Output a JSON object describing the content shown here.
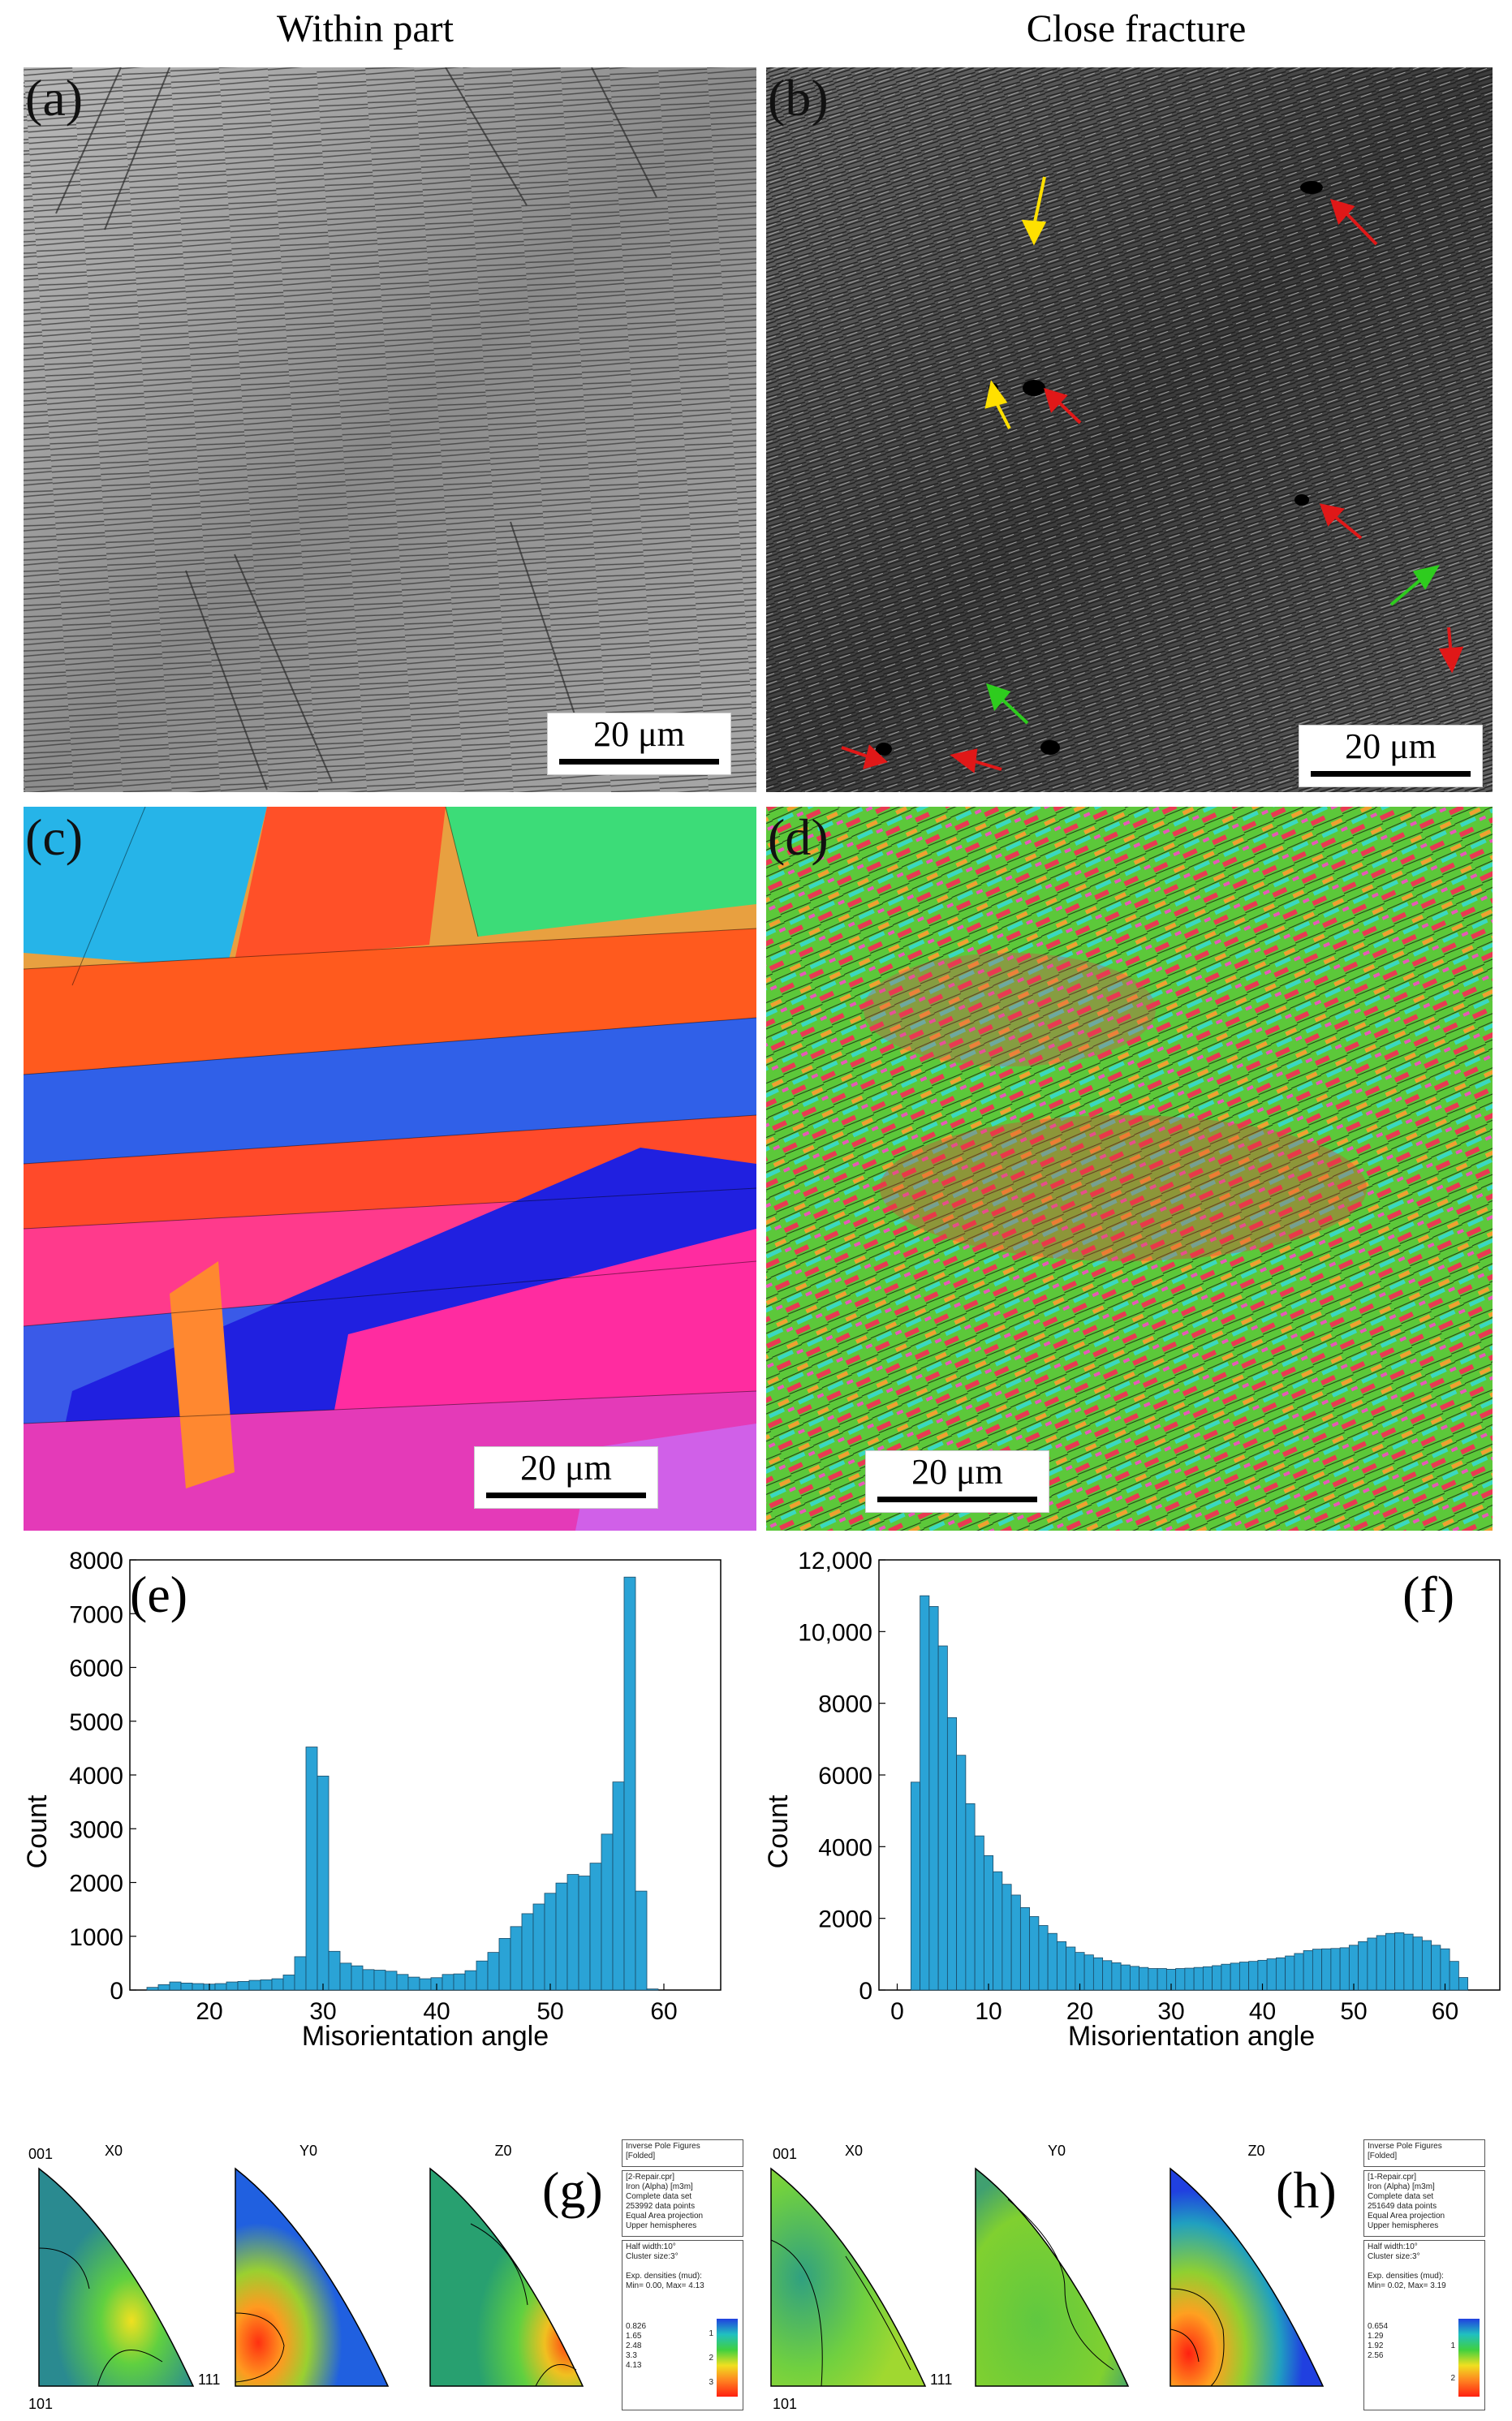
{
  "titles": {
    "left": "Within part",
    "right": "Close fracture"
  },
  "panels": {
    "a": {
      "label": "(a)",
      "scale": "20 μm"
    },
    "b": {
      "label": "(b)",
      "scale": "20 μm"
    },
    "c": {
      "label": "(c)",
      "scale": "20 μm"
    },
    "d": {
      "label": "(d)",
      "scale": "20 μm"
    },
    "e": {
      "label": "(e)"
    },
    "f": {
      "label": "(f)"
    },
    "g": {
      "label": "(g)"
    },
    "h": {
      "label": "(h)"
    }
  },
  "chart_data": [
    {
      "type": "bar",
      "panel": "e",
      "xlabel": "Misorientation angle",
      "ylabel": "Count",
      "xlim": [
        13,
        65
      ],
      "ylim": [
        0,
        8000
      ],
      "xticks": [
        20,
        30,
        40,
        50,
        60
      ],
      "yticks": [
        0,
        1000,
        2000,
        3000,
        4000,
        5000,
        6000,
        7000,
        8000
      ],
      "ytick_labels": [
        "0",
        "1000",
        "2000",
        "3000",
        "4000",
        "5000",
        "6000",
        "7000",
        "8000"
      ],
      "bin_width": 1,
      "x": [
        15,
        16,
        17,
        18,
        19,
        20,
        21,
        22,
        23,
        24,
        25,
        26,
        27,
        28,
        29,
        30,
        31,
        32,
        33,
        34,
        35,
        36,
        37,
        38,
        39,
        40,
        41,
        42,
        43,
        44,
        45,
        46,
        47,
        48,
        49,
        50,
        51,
        52,
        53,
        54,
        55,
        56,
        57,
        58,
        59,
        60,
        61,
        62
      ],
      "values": [
        50,
        100,
        150,
        130,
        120,
        110,
        120,
        150,
        160,
        180,
        190,
        210,
        280,
        620,
        4520,
        3980,
        720,
        500,
        450,
        380,
        370,
        350,
        290,
        240,
        210,
        230,
        290,
        300,
        360,
        540,
        700,
        960,
        1180,
        1420,
        1600,
        1800,
        1990,
        2150,
        2120,
        2360,
        2900,
        3870,
        7680,
        1840,
        20,
        0,
        0,
        0
      ]
    },
    {
      "type": "bar",
      "panel": "f",
      "xlabel": "Misorientation angle",
      "ylabel": "Count",
      "xlim": [
        -2,
        66
      ],
      "ylim": [
        0,
        12000
      ],
      "xticks": [
        0,
        10,
        20,
        30,
        40,
        50,
        60
      ],
      "yticks": [
        0,
        2000,
        4000,
        6000,
        8000,
        10000,
        12000
      ],
      "ytick_labels": [
        "0",
        "2000",
        "4000",
        "6000",
        "8000",
        "10,000",
        "12,000"
      ],
      "bin_width": 1,
      "x": [
        2,
        3,
        4,
        5,
        6,
        7,
        8,
        9,
        10,
        11,
        12,
        13,
        14,
        15,
        16,
        17,
        18,
        19,
        20,
        21,
        22,
        23,
        24,
        25,
        26,
        27,
        28,
        29,
        30,
        31,
        32,
        33,
        34,
        35,
        36,
        37,
        38,
        39,
        40,
        41,
        42,
        43,
        44,
        45,
        46,
        47,
        48,
        49,
        50,
        51,
        52,
        53,
        54,
        55,
        56,
        57,
        58,
        59,
        60,
        61,
        62
      ],
      "values": [
        5800,
        11000,
        10700,
        9600,
        7600,
        6550,
        5200,
        4300,
        3750,
        3300,
        2950,
        2650,
        2300,
        2050,
        1800,
        1580,
        1350,
        1200,
        1050,
        980,
        900,
        820,
        760,
        700,
        660,
        630,
        600,
        600,
        580,
        600,
        610,
        630,
        650,
        680,
        720,
        750,
        780,
        800,
        830,
        870,
        900,
        950,
        1020,
        1100,
        1140,
        1150,
        1160,
        1180,
        1250,
        1350,
        1450,
        1520,
        1580,
        1600,
        1560,
        1480,
        1380,
        1250,
        1150,
        800,
        350
      ]
    }
  ],
  "ipf": {
    "g": {
      "axes": [
        "X0",
        "Y0",
        "Z0"
      ],
      "corners": {
        "top": "001",
        "bottom_left": "101",
        "right": "111"
      },
      "info1": [
        "Inverse Pole Figures",
        "[Folded]"
      ],
      "info2": [
        "[2-Repair.cpr]",
        "Iron (Alpha) [m3m]",
        "Complete data set",
        "253992 data points",
        "Equal Area projection",
        "Upper hemispheres"
      ],
      "info3": [
        "Half width:10°",
        "Cluster size:3°",
        "",
        "Exp. densities (mud):",
        "Min= 0.00, Max= 4.13"
      ],
      "levels": [
        "0.826",
        "1.65",
        "2.48",
        "3.3",
        "4.13"
      ],
      "scale_ticks": [
        "1",
        "2",
        "3"
      ]
    },
    "h": {
      "axes": [
        "X0",
        "Y0",
        "Z0"
      ],
      "corners": {
        "top": "001",
        "bottom_left": "101",
        "right": "111"
      },
      "info1": [
        "Inverse Pole Figures",
        "[Folded]"
      ],
      "info2": [
        "[1-Repair.cpr]",
        "Iron (Alpha) [m3m]",
        "Complete data set",
        "251649 data points",
        "Equal Area projection",
        "Upper hemispheres"
      ],
      "info3": [
        "Half width:10°",
        "Cluster size:3°",
        "",
        "Exp. densities (mud):",
        "Min= 0.02, Max= 3.19"
      ],
      "levels": [
        "0.654",
        "1.29",
        "1.92",
        "2.56"
      ],
      "scale_ticks": [
        "1",
        "2"
      ]
    }
  }
}
